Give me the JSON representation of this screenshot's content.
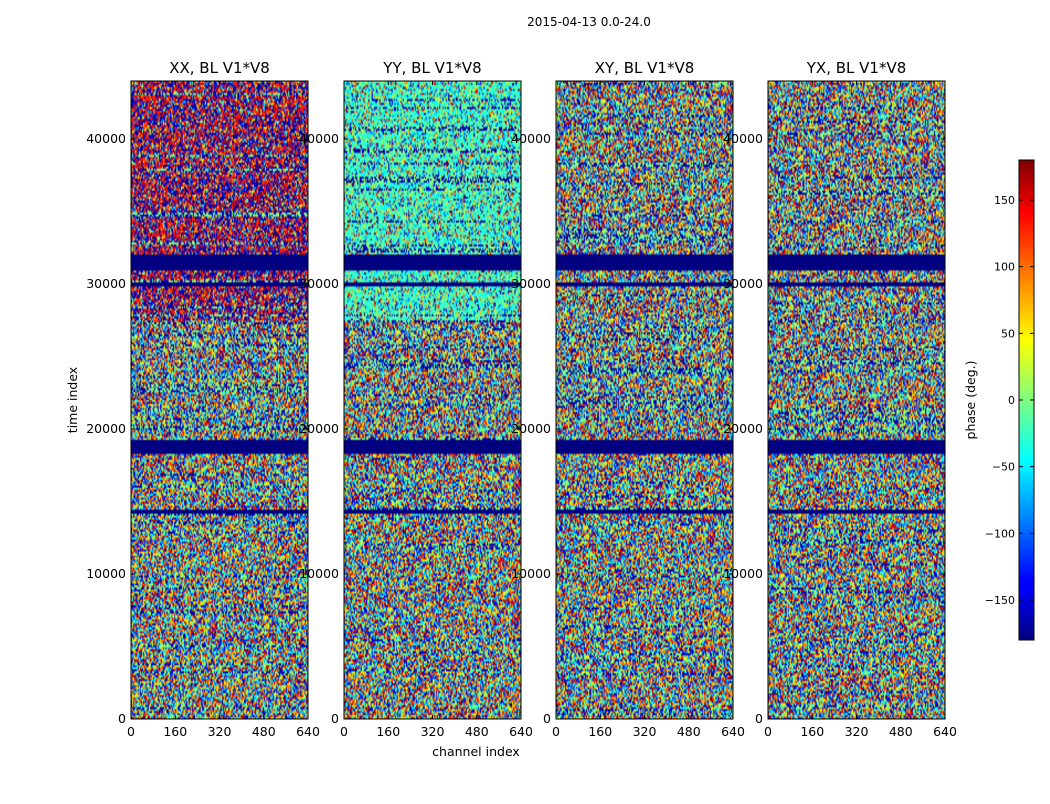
{
  "figure_title": "2015-04-13 0.0-24.0",
  "chart_data": {
    "type": "heatmap",
    "title": "2015-04-13 0.0-24.0",
    "xlabel": "channel index",
    "ylabel": "time index",
    "xlim": [
      0,
      640
    ],
    "ylim": [
      0,
      44000
    ],
    "x_ticks": [
      0,
      160,
      320,
      480,
      640
    ],
    "y_ticks": [
      0,
      10000,
      20000,
      30000,
      40000
    ],
    "x_tick_labels": [
      "0",
      "160",
      "320",
      "480",
      "640"
    ],
    "y_tick_labels": [
      "0",
      "10000",
      "20000",
      "30000",
      "40000"
    ],
    "colormap": "jet",
    "colorbar": {
      "label": "phase (deg.)",
      "range": [
        -180,
        180
      ],
      "ticks": [
        -150,
        -100,
        -50,
        0,
        50,
        100,
        150
      ],
      "tick_labels": [
        "−150",
        "−100",
        "−50",
        "0",
        "50",
        "100",
        "150"
      ]
    },
    "panels": [
      {
        "name": "XX, BL V1*V8",
        "title": "XX, BL V1*V8"
      },
      {
        "name": "YY, BL V1*V8",
        "title": "YY, BL V1*V8"
      },
      {
        "name": "XY, BL V1*V8",
        "title": "XY, BL V1*V8"
      },
      {
        "name": "YX, BL V1*V8",
        "title": "YX, BL V1*V8"
      }
    ],
    "flagged_time_ranges": [
      [
        30900,
        32100
      ],
      [
        18300,
        19300
      ],
      [
        14200,
        14500
      ],
      [
        29800,
        30100
      ]
    ],
    "notes": "Phase waterfall of visibilities: each pixel is phase in degrees for a (channel, time) cell. Lower time range shows random phase with noise; upper range (27500-44000) more coherent. Dark-blue bands are flagged/zero data."
  }
}
